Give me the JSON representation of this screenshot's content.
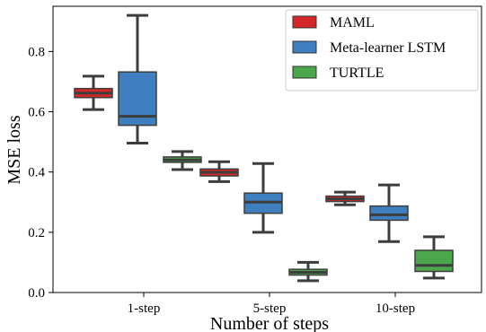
{
  "chart_data": {
    "type": "box",
    "xlabel": "Number of steps",
    "ylabel": "MSE loss",
    "ylim": [
      0,
      0.95
    ],
    "yticks": [
      0.0,
      0.2,
      0.4,
      0.6,
      0.8
    ],
    "ytick_labels": [
      "0.0",
      "0.2",
      "0.4",
      "0.6",
      "0.8"
    ],
    "categories": [
      "1-step",
      "5-step",
      "10-step"
    ],
    "grid": false,
    "legend_position": "top-right",
    "series": [
      {
        "name": "MAML",
        "color": "#d62728",
        "boxes": [
          {
            "whisker_low": 0.607,
            "q1": 0.647,
            "median": 0.662,
            "q3": 0.677,
            "whisker_high": 0.718
          },
          {
            "whisker_low": 0.368,
            "q1": 0.387,
            "median": 0.399,
            "q3": 0.41,
            "whisker_high": 0.434
          },
          {
            "whisker_low": 0.291,
            "q1": 0.302,
            "median": 0.311,
            "q3": 0.32,
            "whisker_high": 0.333
          }
        ]
      },
      {
        "name": "Meta-learner LSTM",
        "color": "#3f7fbf",
        "boxes": [
          {
            "whisker_low": 0.496,
            "q1": 0.555,
            "median": 0.585,
            "q3": 0.732,
            "whisker_high": 0.92
          },
          {
            "whisker_low": 0.2,
            "q1": 0.263,
            "median": 0.3,
            "q3": 0.33,
            "whisker_high": 0.428
          },
          {
            "whisker_low": 0.169,
            "q1": 0.24,
            "median": 0.258,
            "q3": 0.287,
            "whisker_high": 0.357
          }
        ]
      },
      {
        "name": "TURTLE",
        "color": "#4ca64c",
        "boxes": [
          {
            "whisker_low": 0.408,
            "q1": 0.432,
            "median": 0.44,
            "q3": 0.45,
            "whisker_high": 0.468
          },
          {
            "whisker_low": 0.039,
            "q1": 0.058,
            "median": 0.067,
            "q3": 0.077,
            "whisker_high": 0.1
          },
          {
            "whisker_low": 0.048,
            "q1": 0.07,
            "median": 0.09,
            "q3": 0.14,
            "whisker_high": 0.185
          }
        ]
      }
    ]
  }
}
